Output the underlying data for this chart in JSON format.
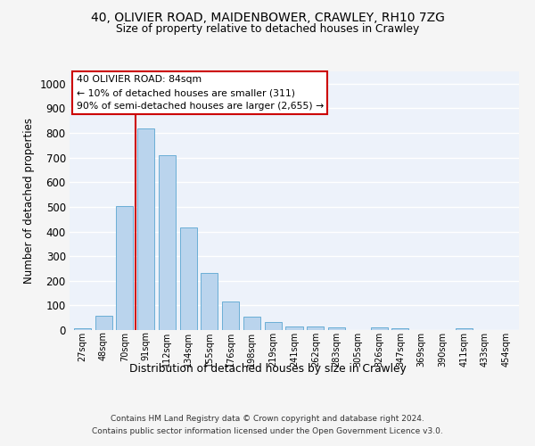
{
  "title1": "40, OLIVIER ROAD, MAIDENBOWER, CRAWLEY, RH10 7ZG",
  "title2": "Size of property relative to detached houses in Crawley",
  "xlabel": "Distribution of detached houses by size in Crawley",
  "ylabel": "Number of detached properties",
  "bar_labels": [
    "27sqm",
    "48sqm",
    "70sqm",
    "91sqm",
    "112sqm",
    "134sqm",
    "155sqm",
    "176sqm",
    "198sqm",
    "219sqm",
    "241sqm",
    "262sqm",
    "283sqm",
    "305sqm",
    "326sqm",
    "347sqm",
    "369sqm",
    "390sqm",
    "411sqm",
    "433sqm",
    "454sqm"
  ],
  "bar_heights": [
    8,
    57,
    505,
    820,
    708,
    418,
    230,
    117,
    53,
    32,
    15,
    15,
    12,
    0,
    10,
    8,
    0,
    0,
    8,
    0,
    0
  ],
  "bar_color": "#bad4ed",
  "bar_edge_color": "#6aaed6",
  "vline_color": "#cc0000",
  "annotation_text": "40 OLIVIER ROAD: 84sqm\n← 10% of detached houses are smaller (311)\n90% of semi-detached houses are larger (2,655) →",
  "annotation_box_color": "#ffffff",
  "annotation_box_edge": "#cc0000",
  "ylim": [
    0,
    1050
  ],
  "yticks": [
    0,
    100,
    200,
    300,
    400,
    500,
    600,
    700,
    800,
    900,
    1000
  ],
  "footer1": "Contains HM Land Registry data © Crown copyright and database right 2024.",
  "footer2": "Contains public sector information licensed under the Open Government Licence v3.0.",
  "bg_color": "#edf2fa",
  "grid_color": "#ffffff",
  "fig_bg_color": "#f5f5f5"
}
